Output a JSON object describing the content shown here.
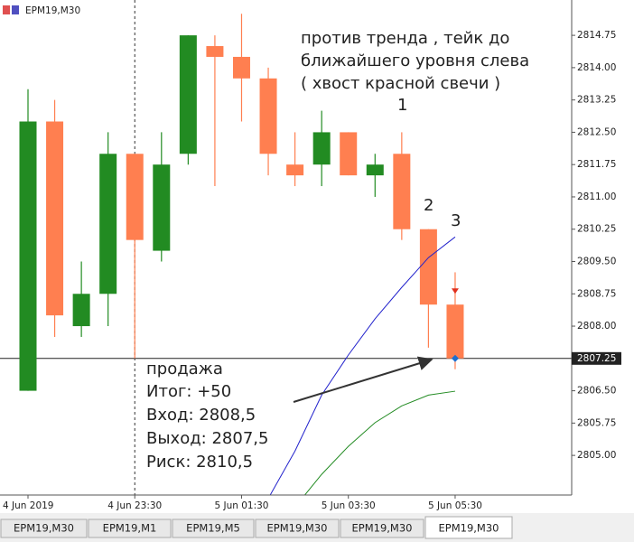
{
  "chart_data": {
    "type": "candlestick",
    "title": "EPM19,M30",
    "categories": [
      "4 Jun 2019",
      null,
      null,
      null,
      "4 Jun 23:30",
      null,
      null,
      null,
      "5 Jun 01:30",
      null,
      null,
      null,
      "5 Jun 03:30",
      null,
      null,
      null,
      "5 Jun 05:30"
    ],
    "open": [
      2806.5,
      2812.75,
      2808.0,
      2808.75,
      2812.0,
      2809.75,
      2812.0,
      2814.5,
      2814.25,
      2813.75,
      2811.75,
      2811.75,
      2812.5,
      2811.5,
      2812.0,
      2810.25,
      2808.5
    ],
    "high": [
      2813.5,
      2813.25,
      2809.5,
      2812.5,
      2812.0,
      2812.5,
      2814.75,
      2814.75,
      2815.25,
      2814.0,
      2812.5,
      2813.0,
      2812.5,
      2812.0,
      2812.5,
      2810.25,
      2809.25
    ],
    "low": [
      2806.5,
      2807.75,
      2807.75,
      2808.0,
      2807.25,
      2809.5,
      2811.75,
      2811.25,
      2812.75,
      2811.5,
      2811.25,
      2811.25,
      2811.5,
      2811.0,
      2810.0,
      2807.5,
      2807.0
    ],
    "close": [
      2812.75,
      2808.25,
      2808.75,
      2812.0,
      2810.0,
      2811.75,
      2814.75,
      2814.25,
      2813.75,
      2812.0,
      2811.5,
      2812.5,
      2811.5,
      2811.75,
      2810.25,
      2808.5,
      2807.25
    ],
    "up_color": "#228b22",
    "down_color": "#ff7f50",
    "lines": [
      {
        "color": "#2222cc",
        "values": [
          null,
          null,
          null,
          null,
          null,
          null,
          null,
          null,
          null,
          2804.0,
          2805.1,
          2806.4,
          2807.33,
          2808.17,
          2808.9,
          2809.59,
          2810.07
        ]
      },
      {
        "color": "#228b22",
        "values": [
          null,
          null,
          null,
          null,
          null,
          null,
          null,
          null,
          null,
          null,
          2803.8,
          2804.56,
          2805.21,
          2805.76,
          2806.15,
          2806.4,
          2806.49
        ]
      }
    ],
    "last_price": 2807.25,
    "markers": [
      2808.75,
      2807.25
    ],
    "marker_colors": [
      "#e0301e",
      "#1e6fd0"
    ],
    "ylim": [
      2804.08,
      2815.57
    ],
    "yticks": [
      2814.75,
      {
        "value": 2814,
        "label": "2814.00"
      },
      2813.25,
      {
        "value": 2812.5,
        "label": "2812.50"
      },
      2811.75,
      {
        "value": 2811,
        "label": "2811.00"
      },
      2810.25,
      {
        "value": 2809.5,
        "label": "2809.50"
      },
      2808.75,
      {
        "value": 2808,
        "label": "2808.00"
      },
      {
        "value": 2806.5,
        "label": "2806.50"
      },
      2805.75,
      {
        "value": 2805,
        "label": "2805.00"
      }
    ],
    "annotation": [
      "против тренда , тейк до",
      "ближайшего уровня слева",
      "( хвост красной свечи )"
    ],
    "point_labels": [
      "1",
      "2",
      "3"
    ],
    "trade_summary": [
      "продажа",
      "Итог: +50",
      "Вход: 2808,5",
      "Выход: 2807,5",
      "Риск: 2810,5"
    ]
  },
  "tabs": [
    "EPM19,M30",
    "EPM19,M1",
    "EPM19,M5",
    "EPM19,M30",
    "EPM19,M30",
    "EPM19,M30"
  ]
}
